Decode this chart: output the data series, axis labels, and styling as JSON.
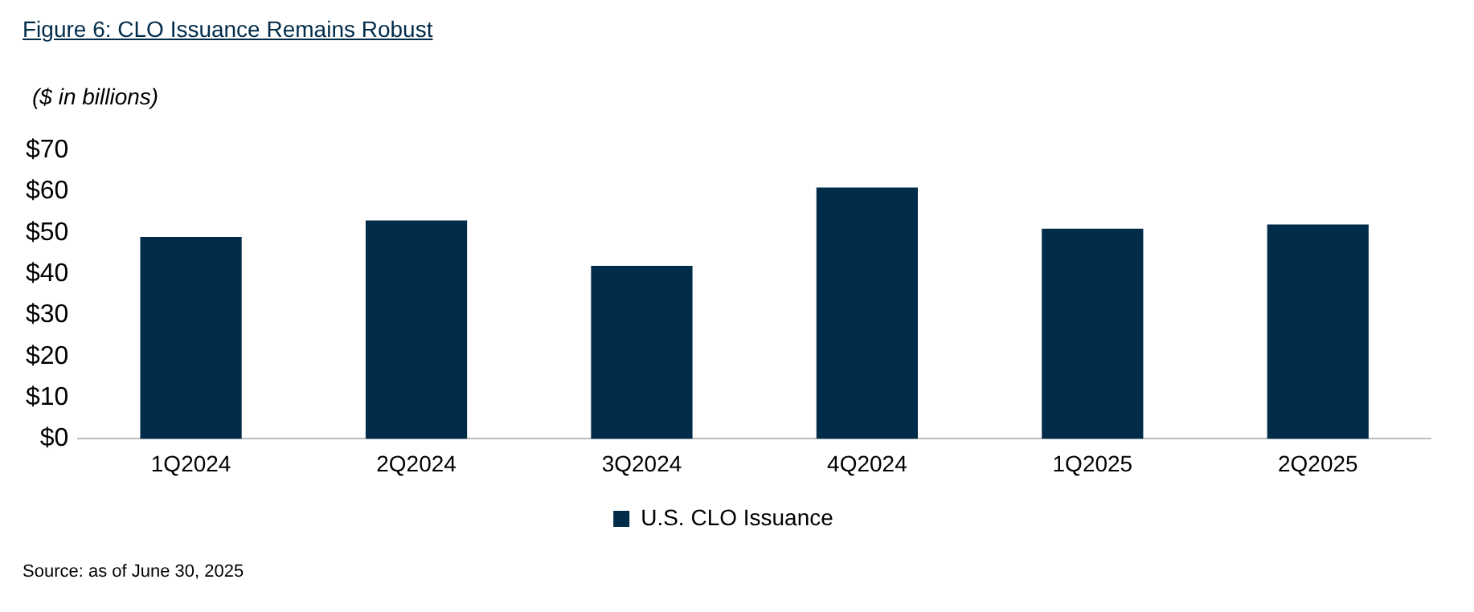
{
  "chart_data": {
    "type": "bar",
    "title": "Figure 6: CLO Issuance Remains Robust",
    "ylabel": "($ in billions)",
    "annotations": [
      "Source: as of June 30, 2025"
    ],
    "categories": [
      "1Q2024",
      "2Q2024",
      "3Q2024",
      "4Q2024",
      "1Q2025",
      "2Q2025"
    ],
    "series": [
      {
        "name": "U.S. CLO Issuance",
        "color": "#002b49",
        "values": [
          49,
          53,
          42,
          61,
          51,
          52
        ]
      }
    ],
    "ylim": [
      0,
      70
    ],
    "yticks": [
      {
        "value": 0,
        "label": "$0"
      },
      {
        "value": 10,
        "label": "$10"
      },
      {
        "value": 20,
        "label": "$20"
      },
      {
        "value": 30,
        "label": "$30"
      },
      {
        "value": 40,
        "label": "$40"
      },
      {
        "value": 50,
        "label": "$50"
      },
      {
        "value": 60,
        "label": "$60"
      },
      {
        "value": 70,
        "label": "$70"
      }
    ],
    "grid": false,
    "legend": "bottom"
  }
}
